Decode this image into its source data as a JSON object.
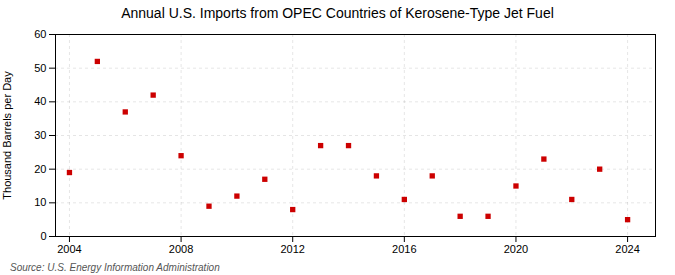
{
  "chart_data": {
    "type": "scatter",
    "title": "Annual U.S. Imports from OPEC Countries of Kerosene-Type Jet Fuel",
    "ylabel": "Thousand Barrels per Day",
    "annotations": [
      "Source: U.S. Energy Information Administration"
    ],
    "x": [
      2004,
      2005,
      2006,
      2007,
      2008,
      2009,
      2010,
      2011,
      2012,
      2013,
      2014,
      2015,
      2016,
      2017,
      2018,
      2019,
      2020,
      2021,
      2022,
      2023,
      2024
    ],
    "values": [
      19,
      52,
      37,
      42,
      24,
      9,
      12,
      17,
      8,
      27,
      27,
      18,
      11,
      18,
      6,
      6,
      15,
      23,
      11,
      20,
      5
    ],
    "color": "#cc0000",
    "marker": "square",
    "xlim": [
      2003.5,
      2025.0
    ],
    "xticks": [
      2004,
      2008,
      2012,
      2016,
      2020,
      2024
    ],
    "ylim": [
      0,
      60
    ],
    "yticks": [
      0,
      10,
      20,
      30,
      40,
      50,
      60
    ],
    "grid": true
  }
}
